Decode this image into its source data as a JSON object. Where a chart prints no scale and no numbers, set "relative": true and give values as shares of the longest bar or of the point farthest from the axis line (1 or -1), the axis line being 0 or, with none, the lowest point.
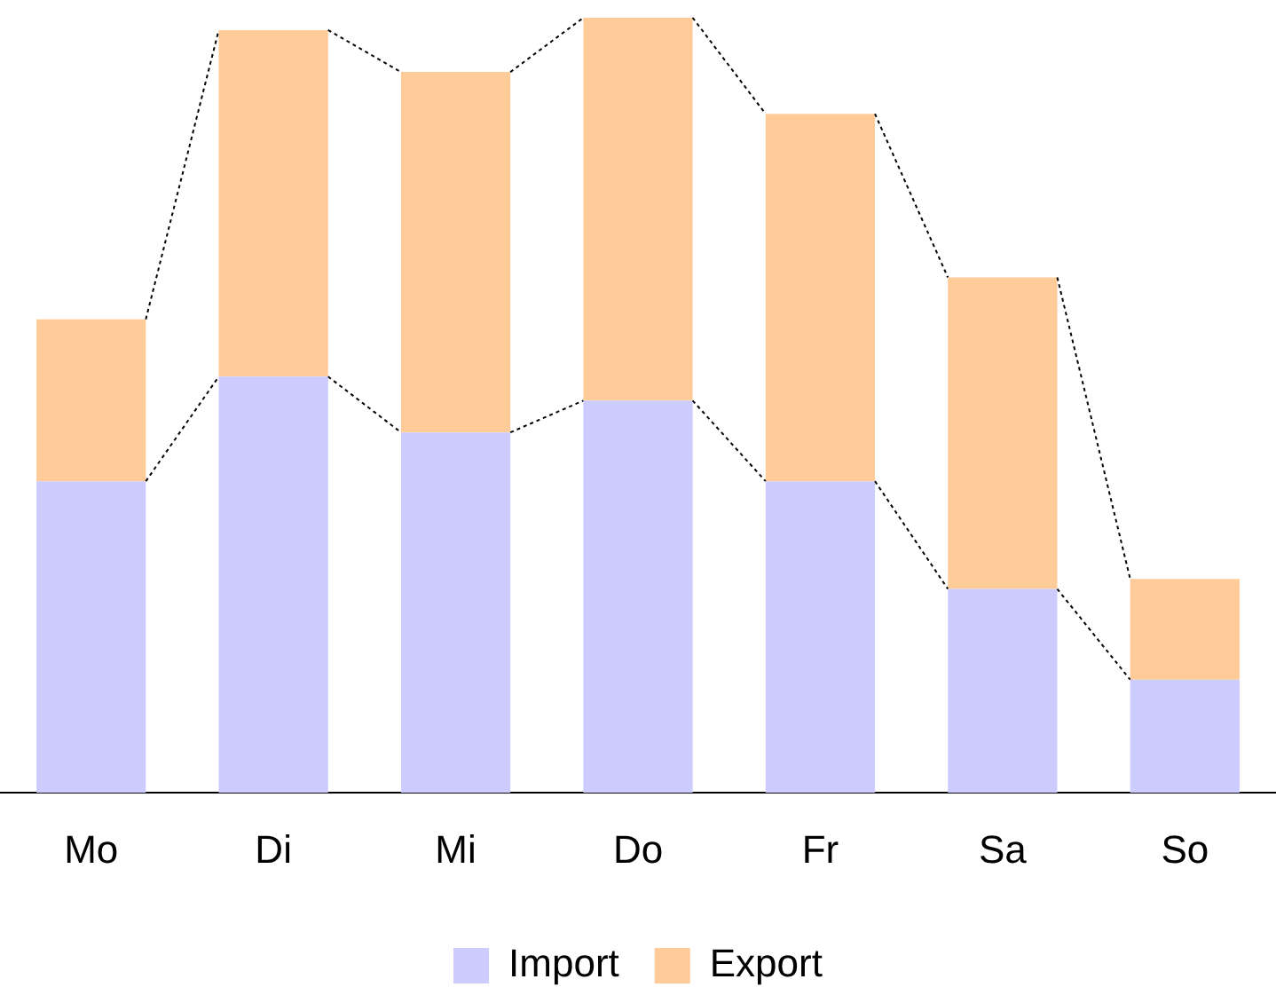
{
  "chart_data": {
    "type": "bar",
    "stacked": true,
    "relative": true,
    "legend": "bottom",
    "grid": false,
    "categories": [
      "Mo",
      "Di",
      "Mi",
      "Do",
      "Fr",
      "Sa",
      "So"
    ],
    "series": [
      {
        "name": "Import",
        "color": "#ccccff",
        "values": [
          0.402,
          0.537,
          0.465,
          0.506,
          0.402,
          0.263,
          0.146
        ]
      },
      {
        "name": "Export",
        "color": "#ffcc99",
        "values": [
          0.209,
          0.447,
          0.465,
          0.494,
          0.474,
          0.402,
          0.13
        ]
      }
    ]
  }
}
